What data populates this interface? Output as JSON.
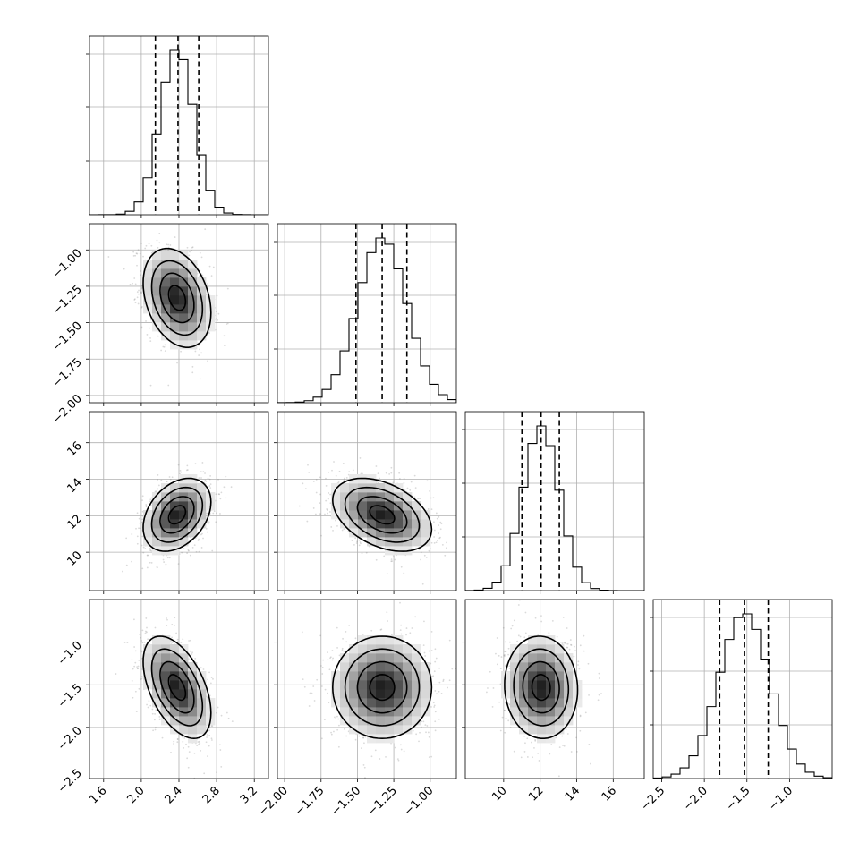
{
  "chart_data": {
    "type": "corner",
    "grid": true,
    "variables": [
      {
        "range": [
          1.45,
          3.35
        ],
        "ticks": [
          1.6,
          2.0,
          2.4,
          2.8,
          3.2
        ],
        "tick_labels": [
          "1.6",
          "2.0",
          "2.4",
          "2.8",
          "3.2"
        ],
        "mean": 2.38,
        "sd": 0.18,
        "quantiles": [
          2.15,
          2.39,
          2.61
        ]
      },
      {
        "range": [
          -2.05,
          -0.82
        ],
        "ticks": [
          -2.0,
          -1.75,
          -1.5,
          -1.25,
          -1.0
        ],
        "tick_labels": [
          "−2.00",
          "−1.75",
          "−1.50",
          "−1.25",
          "−1.00"
        ],
        "mean": -1.33,
        "sd": 0.17,
        "quantiles": [
          -1.51,
          -1.33,
          -1.16
        ]
      },
      {
        "range": [
          7.9,
          17.7
        ],
        "ticks": [
          10,
          12,
          14,
          16
        ],
        "tick_labels": [
          "10",
          "12",
          "14",
          "16"
        ],
        "mean": 12.05,
        "sd": 1.0,
        "quantiles": [
          11.0,
          12.05,
          13.05
        ]
      },
      {
        "range": [
          -2.6,
          -0.5
        ],
        "ticks": [
          -2.5,
          -2.0,
          -1.5,
          -1.0
        ],
        "tick_labels": [
          "−2.5",
          "−2.0",
          "−1.5",
          "−1.0"
        ],
        "mean": -1.53,
        "sd": 0.3,
        "quantiles": [
          -1.82,
          -1.53,
          -1.25
        ]
      }
    ],
    "correlations": [
      {
        "row": 1,
        "col": 0,
        "rho": -0.3
      },
      {
        "row": 2,
        "col": 0,
        "rho": 0.35
      },
      {
        "row": 2,
        "col": 1,
        "rho": -0.4
      },
      {
        "row": 3,
        "col": 0,
        "rho": -0.5
      },
      {
        "row": 3,
        "col": 1,
        "rho": 0.0
      },
      {
        "row": 3,
        "col": 2,
        "rho": -0.05
      }
    ],
    "contour_levels_sigma": [
      0.5,
      1.0,
      1.5,
      2.0
    ],
    "histogram_bins": 20
  }
}
